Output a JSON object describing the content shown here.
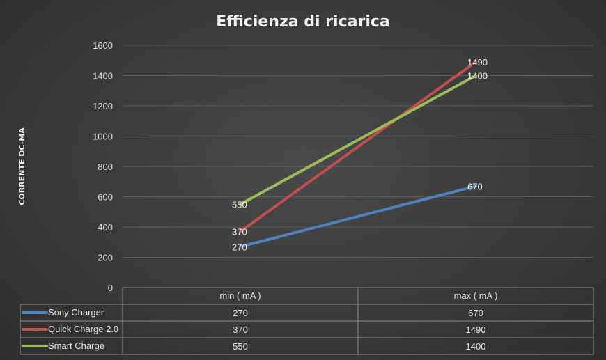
{
  "chart_data": {
    "type": "line",
    "title": "Efficienza di ricarica",
    "ylabel": "CORRENTE DC-MA",
    "xlabel": "",
    "categories": [
      "min ( mA )",
      "max ( mA )"
    ],
    "ylim": [
      0,
      1600
    ],
    "yticks": [
      0,
      200,
      400,
      600,
      800,
      1000,
      1200,
      1400,
      1600
    ],
    "grid": true,
    "legend": "data-table",
    "series": [
      {
        "name": "Sony Charger",
        "values": [
          270,
          670
        ],
        "color": "#4f81bd"
      },
      {
        "name": "Quick Charge 2.0",
        "values": [
          370,
          1490
        ],
        "color": "#c0504d"
      },
      {
        "name": "Smart Charge",
        "values": [
          550,
          1400
        ],
        "color": "#9bbb59"
      }
    ]
  }
}
